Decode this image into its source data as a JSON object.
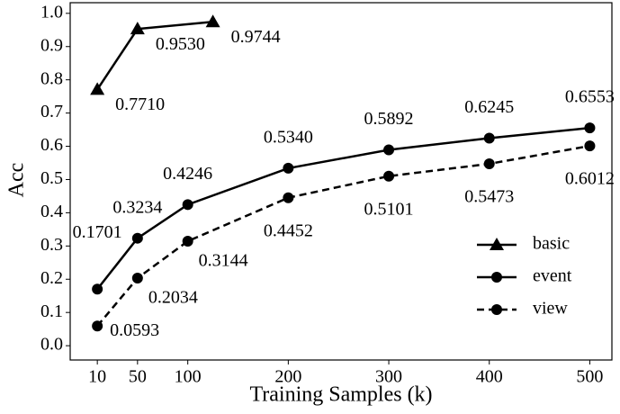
{
  "chart_data": {
    "type": "line",
    "xlabel": "Training Samples (k)",
    "ylabel": "Acc",
    "xlim": [
      -17,
      522
    ],
    "ylim": [
      -0.043,
      1.032
    ],
    "xticks": [
      10,
      50,
      100,
      200,
      300,
      400,
      500
    ],
    "yticks": [
      {
        "value": 0,
        "label": "0.0"
      },
      0.1,
      0.2,
      0.3,
      0.4,
      0.5,
      0.6,
      0.7,
      0.8,
      0.9,
      {
        "value": 1,
        "label": "1.0"
      }
    ],
    "legend": "lower right",
    "series": [
      {
        "name": "basic",
        "color": "#000000",
        "marker": "triangle",
        "dashed": false,
        "x": [
          10,
          50,
          125
        ],
        "values": [
          0.771,
          0.953,
          0.9744
        ],
        "value_labels": [
          "0.7710",
          "0.9530",
          "0.9744"
        ]
      },
      {
        "name": "event",
        "color": "#000000",
        "marker": "circle",
        "dashed": false,
        "x": [
          10,
          50,
          100,
          200,
          300,
          400,
          500
        ],
        "values": [
          0.1701,
          0.3234,
          0.4246,
          0.534,
          0.5892,
          0.6245,
          0.6553
        ],
        "value_labels": [
          "0.1701",
          "0.3234",
          "0.4246",
          "0.5340",
          "0.5892",
          "0.6245",
          "0.6553"
        ]
      },
      {
        "name": "view",
        "color": "#000000",
        "marker": "circle",
        "dashed": true,
        "x": [
          10,
          50,
          100,
          200,
          300,
          400,
          500
        ],
        "values": [
          0.0593,
          0.2034,
          0.3144,
          0.4452,
          0.5101,
          0.5473,
          0.6012
        ],
        "value_labels": [
          "0.0593",
          "0.2034",
          "0.3144",
          "0.4452",
          "0.5101",
          "0.5473",
          "0.6012"
        ]
      }
    ]
  }
}
